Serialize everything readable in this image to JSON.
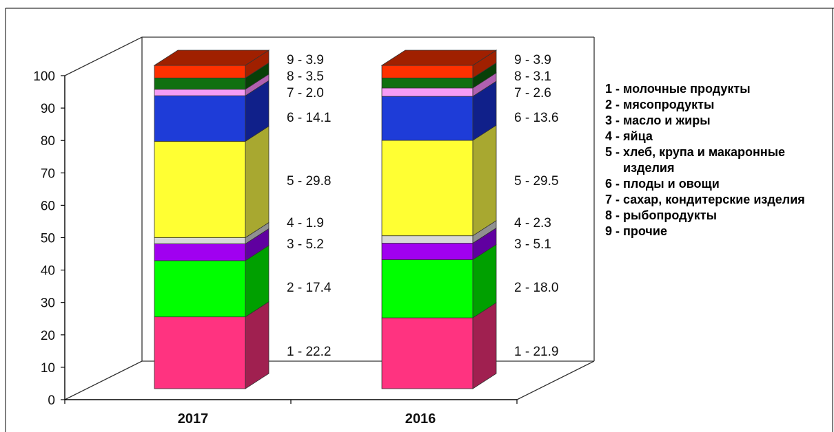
{
  "chart_data": {
    "type": "bar",
    "stacked": true,
    "three_d": true,
    "categories": [
      "2017",
      "2016"
    ],
    "ylim": [
      0,
      100
    ],
    "yticks": [
      "0",
      "10",
      "20",
      "30",
      "40",
      "50",
      "60",
      "70",
      "80",
      "90",
      "100"
    ],
    "series": [
      {
        "key": "1",
        "values": [
          22.2,
          21.9
        ],
        "labels": [
          "1 - 22.2",
          "1 - 21.9"
        ],
        "color": "#FF3380",
        "side_color": "#A02050"
      },
      {
        "key": "2",
        "values": [
          17.4,
          18.0
        ],
        "labels": [
          "2 - 17.4",
          "2 - 18.0"
        ],
        "color": "#00FF00",
        "side_color": "#00A000"
      },
      {
        "key": "3",
        "values": [
          5.2,
          5.1
        ],
        "labels": [
          "3 - 5.2",
          "3 - 5.1"
        ],
        "color": "#A000F0",
        "side_color": "#6000A0"
      },
      {
        "key": "4",
        "values": [
          1.9,
          2.3
        ],
        "labels": [
          "4 - 1.9",
          "4 - 2.3"
        ],
        "color": "#D8D8D8",
        "side_color": "#909090"
      },
      {
        "key": "5",
        "values": [
          29.8,
          29.5
        ],
        "labels": [
          "5 - 29.8",
          "5 - 29.5"
        ],
        "color": "#FFFF33",
        "side_color": "#A8A830"
      },
      {
        "key": "6",
        "values": [
          14.1,
          13.6
        ],
        "labels": [
          "6 - 14.1",
          "6 - 13.6"
        ],
        "color": "#1E3CD8",
        "side_color": "#10208A"
      },
      {
        "key": "7",
        "values": [
          2.0,
          2.6
        ],
        "labels": [
          "7 - 2.0",
          "7 - 2.6"
        ],
        "color": "#F59CF5",
        "side_color": "#B060B0"
      },
      {
        "key": "8",
        "values": [
          3.5,
          3.1
        ],
        "labels": [
          "8 - 3.5",
          "8 - 3.1"
        ],
        "color": "#107010",
        "side_color": "#084008"
      },
      {
        "key": "9",
        "values": [
          3.9,
          3.9
        ],
        "labels": [
          "9 - 3.9",
          "9 - 3.9"
        ],
        "color": "#FF3000",
        "side_color": "#A02000"
      }
    ],
    "legend": [
      {
        "key": "1 - ",
        "text": "молочные продукты"
      },
      {
        "key": "2 - ",
        "text": "мясопродукты"
      },
      {
        "key": "3 - ",
        "text": "масло и жиры"
      },
      {
        "key": "4 - ",
        "text": "яйца"
      },
      {
        "key": "5 - ",
        "text": "хлеб, крупа и макаронные изделия"
      },
      {
        "key": "6 - ",
        "text": "плоды и  овощи"
      },
      {
        "key": "7 - ",
        "text": "сахар, кондитерские изделия"
      },
      {
        "key": "8 - ",
        "text": "рыбопродукты"
      },
      {
        "key": "9 - ",
        "text": "прочие"
      }
    ],
    "legend_position": "right",
    "grid": false
  }
}
